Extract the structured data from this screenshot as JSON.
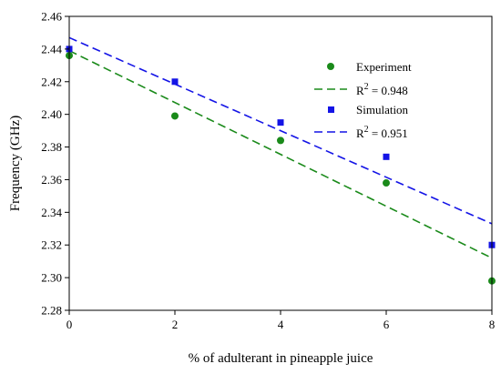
{
  "chart_data": {
    "type": "scatter",
    "title": "",
    "xlabel": "% of adulterant in pineapple juice",
    "ylabel": "Frequency (GHz)",
    "xlim": [
      0,
      8
    ],
    "ylim": [
      2.28,
      2.46
    ],
    "xticks": [
      0,
      2,
      4,
      6,
      8
    ],
    "xtick_labels": [
      "0",
      "2",
      "4",
      "6",
      "8"
    ],
    "yticks": [
      2.28,
      2.3,
      2.32,
      2.34,
      2.36,
      2.38,
      2.4,
      2.42,
      2.44,
      2.46
    ],
    "ytick_labels": [
      "2.28",
      "2.30",
      "2.32",
      "2.34",
      "2.36",
      "2.38",
      "2.40",
      "2.42",
      "2.44",
      "2.46"
    ],
    "grid": false,
    "legend_position": "top-right",
    "series": [
      {
        "name": "Experiment",
        "marker": "circle",
        "color": "#1a8a1a",
        "x": [
          0,
          2,
          4,
          6,
          8
        ],
        "y": [
          2.436,
          2.399,
          2.384,
          2.358,
          2.298
        ],
        "fit": {
          "label": "R",
          "superscript": "2",
          "value_text": " = 0.948",
          "x": [
            0,
            8
          ],
          "y": [
            2.439,
            2.312
          ],
          "style": "dashed"
        }
      },
      {
        "name": "Simulation",
        "marker": "square",
        "color": "#1414e6",
        "x": [
          0,
          2,
          4,
          6,
          8
        ],
        "y": [
          2.44,
          2.42,
          2.395,
          2.374,
          2.32
        ],
        "fit": {
          "label": "R",
          "superscript": "2",
          "value_text": " = 0.951",
          "x": [
            0,
            8
          ],
          "y": [
            2.447,
            2.333
          ],
          "style": "dashed"
        }
      }
    ]
  }
}
